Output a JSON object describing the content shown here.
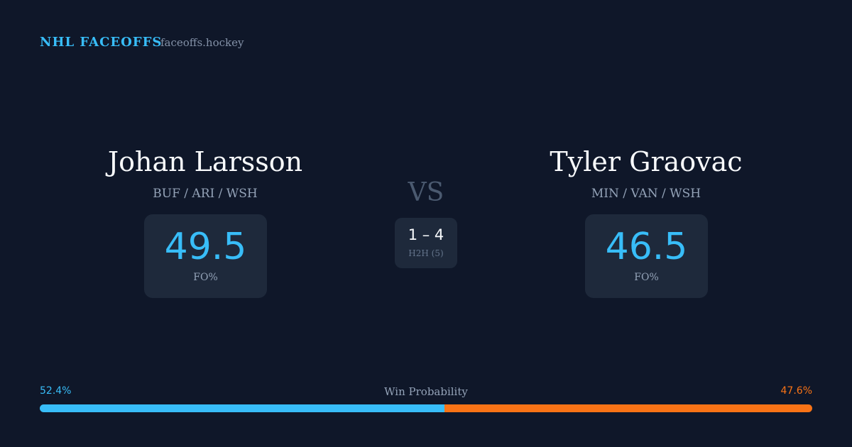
{
  "header": {
    "brand": "NHL FACEOFFS",
    "site": "faceoffs.hockey"
  },
  "players": [
    {
      "name": "Johan Larsson",
      "teams": "BUF / ARI / WSH",
      "fo_pct": 49.5,
      "fo_label": "FO%"
    },
    {
      "name": "Tyler Graovac",
      "teams": "MIN / VAN / WSH",
      "fo_pct": 46.5,
      "fo_label": "FO%"
    }
  ],
  "versus": {
    "label": "VS",
    "score": "1 – 4",
    "h2h": "H2H (5)"
  },
  "win_probability": {
    "title": "Win Probability",
    "left": {
      "value": 52.4,
      "label": "52.4%",
      "color": "#38bdf8"
    },
    "right": {
      "value": 47.6,
      "label": "47.6%",
      "color": "#f97316"
    }
  }
}
